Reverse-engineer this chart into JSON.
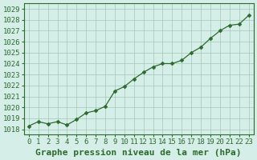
{
  "x": [
    0,
    1,
    2,
    3,
    4,
    5,
    6,
    7,
    8,
    9,
    10,
    11,
    12,
    13,
    14,
    15,
    16,
    17,
    18,
    19,
    20,
    21,
    22,
    23
  ],
  "y": [
    1018.3,
    1018.7,
    1018.5,
    1018.7,
    1018.4,
    1018.9,
    1019.5,
    1019.7,
    1020.1,
    1021.5,
    1021.9,
    1022.6,
    1023.2,
    1023.7,
    1024.0,
    1024.0,
    1024.3,
    1025.0,
    1025.5,
    1026.3,
    1027.0,
    1027.5,
    1027.6,
    1028.4
  ],
  "line_color": "#2d6a2d",
  "marker_color": "#2d6a2d",
  "bg_color": "#d5eee8",
  "grid_color": "#a0c8b8",
  "title": "Graphe pression niveau de la mer (hPa)",
  "yticks": [
    1018,
    1019,
    1020,
    1021,
    1022,
    1023,
    1024,
    1025,
    1026,
    1027,
    1028,
    1029
  ],
  "xlim": [
    -0.5,
    23.5
  ],
  "ylim": [
    1017.5,
    1029.5
  ],
  "title_fontsize": 8,
  "tick_fontsize": 6.5
}
